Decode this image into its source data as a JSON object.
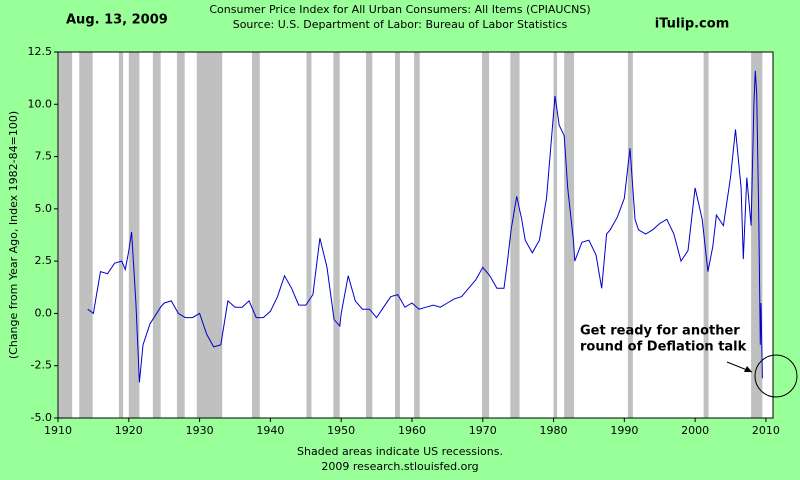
{
  "chart_data": {
    "type": "line",
    "date": "Aug. 13, 2009",
    "title": "Consumer Price Index for All Urban Consumers: All Items (CPIAUCNS)",
    "subtitle": "Source: U.S. Department of Labor: Bureau of Labor Statistics",
    "brand": "iTulip.com",
    "ylabel": "(Change from Year Ago, Index 1982-84=100)",
    "footer": [
      "Shaded areas indicate US recessions.",
      "2009 research.stlouisfed.org"
    ],
    "annotation": [
      "Get ready for another",
      "round of Deflation talk"
    ],
    "xlim": [
      1910,
      2011
    ],
    "ylim": [
      -5,
      12.5
    ],
    "xticks": [
      1910,
      1920,
      1930,
      1940,
      1950,
      1960,
      1970,
      1980,
      1990,
      2000,
      2010
    ],
    "yticks": [
      {
        "value": -5,
        "label": "-5.0"
      },
      {
        "value": -2.5,
        "label": "-2.5"
      },
      {
        "value": 0,
        "label": "0.0"
      },
      {
        "value": 2.5,
        "label": "2.5"
      },
      {
        "value": 5,
        "label": "5.0"
      },
      {
        "value": 7.5,
        "label": "7.5"
      },
      {
        "value": 10,
        "label": "10.0"
      },
      12.5
    ],
    "recession_color": "#c0c0c0",
    "recessions": [
      [
        1910.1,
        1912.0
      ],
      [
        1913.0,
        1914.9
      ],
      [
        1918.6,
        1919.2
      ],
      [
        1920.0,
        1921.5
      ],
      [
        1923.4,
        1924.5
      ],
      [
        1926.8,
        1927.9
      ],
      [
        1929.6,
        1933.2
      ],
      [
        1937.4,
        1938.5
      ],
      [
        1945.1,
        1945.8
      ],
      [
        1948.9,
        1949.8
      ],
      [
        1953.5,
        1954.4
      ],
      [
        1957.6,
        1958.3
      ],
      [
        1960.3,
        1961.1
      ],
      [
        1969.9,
        1970.9
      ],
      [
        1973.9,
        1975.2
      ],
      [
        1980.0,
        1980.5
      ],
      [
        1981.5,
        1982.9
      ],
      [
        1990.5,
        1991.2
      ],
      [
        2001.2,
        2001.9
      ],
      [
        2007.9,
        2009.5
      ]
    ],
    "series": [
      {
        "color": "#0000cc",
        "x": [
          1914.2,
          1915,
          1915.5,
          1916,
          1917,
          1918,
          1919,
          1919.5,
          1920,
          1920.4,
          1921,
          1921.5,
          1922,
          1923,
          1924.5,
          1925,
          1926,
          1927,
          1928,
          1929,
          1930,
          1931,
          1932,
          1933,
          1934,
          1935,
          1936,
          1937,
          1938,
          1939,
          1940,
          1941,
          1942,
          1943,
          1944,
          1945,
          1946,
          1947,
          1948,
          1949,
          1949.8,
          1950,
          1951,
          1952,
          1953,
          1954,
          1955,
          1956,
          1957,
          1958,
          1959,
          1960,
          1961,
          1962,
          1963,
          1964,
          1965,
          1966,
          1967,
          1968,
          1969,
          1970,
          1971,
          1972,
          1973,
          1973.5,
          1974,
          1974.8,
          1975.5,
          1976,
          1977,
          1978,
          1979,
          1979.5,
          1980.2,
          1980.8,
          1981.5,
          1982,
          1982.8,
          1983,
          1984,
          1985,
          1986,
          1986.8,
          1987.5,
          1988,
          1989,
          1990,
          1990.8,
          1991.5,
          1992,
          1993,
          1994,
          1995,
          1996,
          1997,
          1998,
          1999,
          2000,
          2001,
          2001.8,
          2002.5,
          2003,
          2004,
          2005,
          2005.7,
          2006.5,
          2006.8,
          2007.3,
          2007.9,
          2008.3,
          2008.5,
          2008.7,
          2009,
          2009.2,
          2009.3,
          2009.5
        ],
        "values": [
          0.2,
          0.0,
          1.0,
          2.0,
          1.9,
          2.4,
          2.5,
          2.1,
          3.0,
          3.9,
          0.5,
          -3.3,
          -1.5,
          -0.5,
          0.3,
          0.5,
          0.6,
          0.0,
          -0.2,
          -0.2,
          0.0,
          -1.0,
          -1.6,
          -1.5,
          0.6,
          0.3,
          0.3,
          0.6,
          -0.2,
          -0.2,
          0.1,
          0.8,
          1.8,
          1.2,
          0.4,
          0.4,
          0.9,
          3.6,
          2.2,
          -0.3,
          -0.6,
          0.0,
          1.8,
          0.6,
          0.2,
          0.2,
          -0.2,
          0.3,
          0.8,
          0.9,
          0.3,
          0.5,
          0.2,
          0.3,
          0.4,
          0.3,
          0.5,
          0.7,
          0.8,
          1.2,
          1.6,
          2.2,
          1.8,
          1.2,
          1.2,
          2.5,
          4.0,
          5.6,
          4.5,
          3.5,
          2.9,
          3.5,
          5.5,
          7.5,
          10.4,
          9.0,
          8.5,
          6.0,
          3.5,
          2.5,
          3.4,
          3.5,
          2.8,
          1.2,
          3.8,
          4.0,
          4.6,
          5.5,
          7.9,
          4.5,
          4.0,
          3.8,
          4.0,
          4.3,
          4.5,
          3.8,
          2.5,
          3.0,
          6.0,
          4.5,
          2.0,
          3.2,
          4.7,
          4.2,
          6.5,
          8.8,
          6.0,
          2.6,
          6.5,
          4.2,
          10.0,
          11.6,
          10.5,
          4.5,
          -1.5,
          0.5,
          -3.1
        ]
      }
    ]
  }
}
